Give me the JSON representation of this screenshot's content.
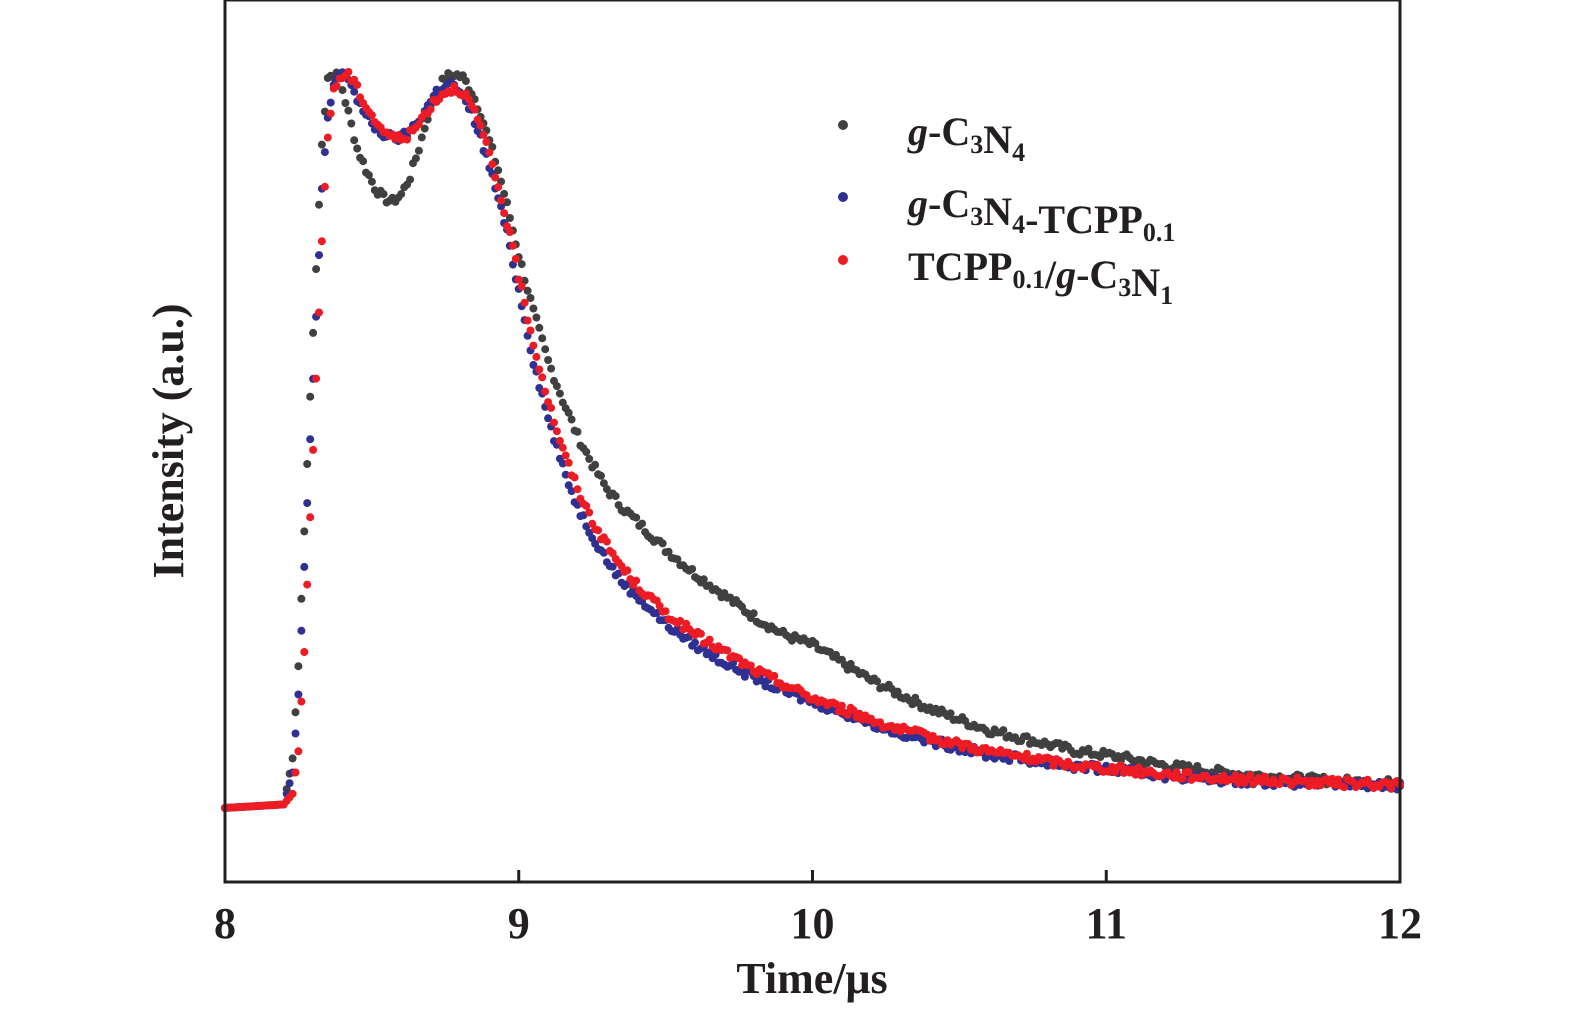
{
  "chart_data": {
    "type": "scatter",
    "xlabel": "Time/μs",
    "ylabel": "Intensity (a.u.)",
    "xlim": [
      8,
      12
    ],
    "ylim": [
      0,
      1.1
    ],
    "x_ticks": [
      8,
      9,
      10,
      11,
      12
    ],
    "y_ticks_shown": false,
    "grid": false,
    "legend_position": "top-right",
    "series": [
      {
        "name": "g-C3N4",
        "label_parts": [
          {
            "t": "g",
            "style": "italic"
          },
          {
            "t": "-C"
          },
          {
            "t": "3",
            "style": "sub"
          },
          {
            "t": "N"
          },
          {
            "t": "4",
            "style": "sub"
          }
        ],
        "color": "#404040",
        "points": [
          [
            8.0,
            0.0
          ],
          [
            8.2,
            0.005
          ],
          [
            8.23,
            0.07
          ],
          [
            8.25,
            0.2
          ],
          [
            8.27,
            0.39
          ],
          [
            8.29,
            0.58
          ],
          [
            8.31,
            0.76
          ],
          [
            8.33,
            0.94
          ],
          [
            8.35,
            1.03
          ],
          [
            8.37,
            1.035
          ],
          [
            8.39,
            1.03
          ],
          [
            8.42,
            0.98
          ],
          [
            8.45,
            0.93
          ],
          [
            8.48,
            0.9
          ],
          [
            8.51,
            0.875
          ],
          [
            8.54,
            0.86
          ],
          [
            8.57,
            0.855
          ],
          [
            8.6,
            0.865
          ],
          [
            8.63,
            0.89
          ],
          [
            8.66,
            0.93
          ],
          [
            8.69,
            0.975
          ],
          [
            8.72,
            1.01
          ],
          [
            8.75,
            1.03
          ],
          [
            8.78,
            1.035
          ],
          [
            8.81,
            1.03
          ],
          [
            8.84,
            1.01
          ],
          [
            8.87,
            0.98
          ],
          [
            8.9,
            0.94
          ],
          [
            8.93,
            0.9
          ],
          [
            8.96,
            0.85
          ],
          [
            9.0,
            0.78
          ],
          [
            9.05,
            0.7
          ],
          [
            9.1,
            0.63
          ],
          [
            9.15,
            0.575
          ],
          [
            9.2,
            0.525
          ],
          [
            9.25,
            0.485
          ],
          [
            9.3,
            0.45
          ],
          [
            9.35,
            0.425
          ],
          [
            9.4,
            0.405
          ],
          [
            9.5,
            0.365
          ],
          [
            9.6,
            0.33
          ],
          [
            9.7,
            0.3
          ],
          [
            9.8,
            0.27
          ],
          [
            9.9,
            0.245
          ],
          [
            10.0,
            0.23
          ],
          [
            10.1,
            0.205
          ],
          [
            10.2,
            0.18
          ],
          [
            10.3,
            0.16
          ],
          [
            10.4,
            0.14
          ],
          [
            10.5,
            0.125
          ],
          [
            10.6,
            0.11
          ],
          [
            10.7,
            0.1
          ],
          [
            10.8,
            0.09
          ],
          [
            10.9,
            0.08
          ],
          [
            11.0,
            0.075
          ],
          [
            11.1,
            0.068
          ],
          [
            11.2,
            0.06
          ],
          [
            11.3,
            0.055
          ],
          [
            11.4,
            0.05
          ],
          [
            11.5,
            0.046
          ],
          [
            11.6,
            0.043
          ],
          [
            11.7,
            0.04
          ],
          [
            11.8,
            0.038
          ],
          [
            11.9,
            0.036
          ],
          [
            12.0,
            0.035
          ]
        ]
      },
      {
        "name": "g-C3N4-TCPP0.1",
        "label_parts": [
          {
            "t": "g",
            "style": "italic"
          },
          {
            "t": "-C"
          },
          {
            "t": "3",
            "style": "sub"
          },
          {
            "t": "N"
          },
          {
            "t": "4",
            "style": "sub"
          },
          {
            "t": "-TCPP"
          },
          {
            "t": "0.1",
            "style": "sub"
          }
        ],
        "color": "#2e3192",
        "points": [
          [
            8.0,
            0.0
          ],
          [
            8.2,
            0.005
          ],
          [
            8.23,
            0.05
          ],
          [
            8.25,
            0.16
          ],
          [
            8.27,
            0.34
          ],
          [
            8.29,
            0.52
          ],
          [
            8.31,
            0.69
          ],
          [
            8.33,
            0.87
          ],
          [
            8.35,
            0.97
          ],
          [
            8.37,
            1.02
          ],
          [
            8.39,
            1.035
          ],
          [
            8.42,
            1.03
          ],
          [
            8.45,
            1.0
          ],
          [
            8.48,
            0.975
          ],
          [
            8.51,
            0.96
          ],
          [
            8.54,
            0.95
          ],
          [
            8.57,
            0.945
          ],
          [
            8.6,
            0.945
          ],
          [
            8.63,
            0.955
          ],
          [
            8.66,
            0.97
          ],
          [
            8.69,
            0.99
          ],
          [
            8.72,
            1.01
          ],
          [
            8.75,
            1.02
          ],
          [
            8.78,
            1.02
          ],
          [
            8.81,
            1.0
          ],
          [
            8.84,
            0.98
          ],
          [
            8.87,
            0.945
          ],
          [
            8.9,
            0.905
          ],
          [
            8.93,
            0.86
          ],
          [
            8.96,
            0.81
          ],
          [
            9.0,
            0.73
          ],
          [
            9.05,
            0.63
          ],
          [
            9.1,
            0.55
          ],
          [
            9.15,
            0.48
          ],
          [
            9.2,
            0.425
          ],
          [
            9.25,
            0.385
          ],
          [
            9.3,
            0.35
          ],
          [
            9.35,
            0.32
          ],
          [
            9.4,
            0.3
          ],
          [
            9.5,
            0.26
          ],
          [
            9.6,
            0.23
          ],
          [
            9.7,
            0.205
          ],
          [
            9.8,
            0.185
          ],
          [
            9.9,
            0.165
          ],
          [
            10.0,
            0.15
          ],
          [
            10.1,
            0.135
          ],
          [
            10.2,
            0.12
          ],
          [
            10.3,
            0.105
          ],
          [
            10.4,
            0.095
          ],
          [
            10.5,
            0.085
          ],
          [
            10.6,
            0.075
          ],
          [
            10.7,
            0.07
          ],
          [
            10.8,
            0.063
          ],
          [
            10.9,
            0.058
          ],
          [
            11.0,
            0.055
          ],
          [
            11.1,
            0.05
          ],
          [
            11.2,
            0.046
          ],
          [
            11.3,
            0.043
          ],
          [
            11.4,
            0.04
          ],
          [
            11.5,
            0.038
          ],
          [
            11.6,
            0.036
          ],
          [
            11.7,
            0.035
          ],
          [
            11.8,
            0.034
          ],
          [
            11.9,
            0.033
          ],
          [
            12.0,
            0.032
          ]
        ]
      },
      {
        "name": "TCPP0.1/g-C3N1",
        "label_parts": [
          {
            "t": "TCPP"
          },
          {
            "t": "0.1",
            "style": "sub"
          },
          {
            "t": "/"
          },
          {
            "t": "g",
            "style": "italic"
          },
          {
            "t": "-C"
          },
          {
            "t": "3",
            "style": "sub"
          },
          {
            "t": "N"
          },
          {
            "t": "1",
            "style": "sub"
          }
        ],
        "color": "#ed1c24",
        "points": [
          [
            8.0,
            0.0
          ],
          [
            8.2,
            0.005
          ],
          [
            8.23,
            0.02
          ],
          [
            8.25,
            0.08
          ],
          [
            8.27,
            0.22
          ],
          [
            8.29,
            0.41
          ],
          [
            8.31,
            0.6
          ],
          [
            8.33,
            0.8
          ],
          [
            8.35,
            0.95
          ],
          [
            8.37,
            1.01
          ],
          [
            8.39,
            1.03
          ],
          [
            8.42,
            1.035
          ],
          [
            8.45,
            1.015
          ],
          [
            8.48,
            0.99
          ],
          [
            8.51,
            0.97
          ],
          [
            8.54,
            0.955
          ],
          [
            8.57,
            0.945
          ],
          [
            8.6,
            0.945
          ],
          [
            8.63,
            0.95
          ],
          [
            8.66,
            0.965
          ],
          [
            8.69,
            0.985
          ],
          [
            8.72,
            1.0
          ],
          [
            8.75,
            1.01
          ],
          [
            8.78,
            1.015
          ],
          [
            8.81,
            1.01
          ],
          [
            8.84,
            0.99
          ],
          [
            8.87,
            0.96
          ],
          [
            8.9,
            0.92
          ],
          [
            8.93,
            0.875
          ],
          [
            8.96,
            0.825
          ],
          [
            9.0,
            0.75
          ],
          [
            9.05,
            0.655
          ],
          [
            9.1,
            0.575
          ],
          [
            9.15,
            0.505
          ],
          [
            9.2,
            0.45
          ],
          [
            9.25,
            0.405
          ],
          [
            9.3,
            0.37
          ],
          [
            9.35,
            0.34
          ],
          [
            9.4,
            0.315
          ],
          [
            9.5,
            0.275
          ],
          [
            9.6,
            0.245
          ],
          [
            9.7,
            0.22
          ],
          [
            9.8,
            0.195
          ],
          [
            9.9,
            0.175
          ],
          [
            10.0,
            0.155
          ],
          [
            10.1,
            0.14
          ],
          [
            10.2,
            0.125
          ],
          [
            10.3,
            0.11
          ],
          [
            10.4,
            0.1
          ],
          [
            10.5,
            0.09
          ],
          [
            10.6,
            0.08
          ],
          [
            10.7,
            0.073
          ],
          [
            10.8,
            0.066
          ],
          [
            10.9,
            0.06
          ],
          [
            11.0,
            0.056
          ],
          [
            11.1,
            0.052
          ],
          [
            11.2,
            0.048
          ],
          [
            11.3,
            0.045
          ],
          [
            11.4,
            0.042
          ],
          [
            11.5,
            0.04
          ],
          [
            11.6,
            0.038
          ],
          [
            11.7,
            0.036
          ],
          [
            11.8,
            0.035
          ],
          [
            11.9,
            0.034
          ],
          [
            12.0,
            0.033
          ]
        ]
      }
    ]
  }
}
